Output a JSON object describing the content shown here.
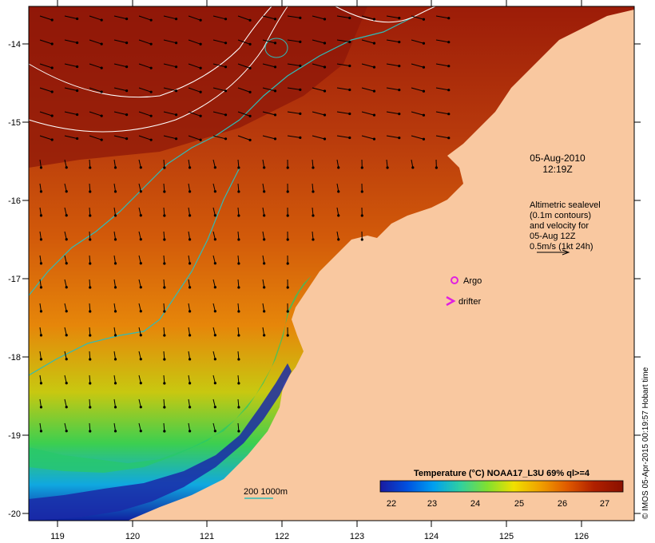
{
  "map": {
    "axes": {
      "x_ticks": [
        "119",
        "120",
        "121",
        "122",
        "123",
        "124",
        "125",
        "126"
      ],
      "y_ticks": [
        "-14",
        "-15",
        "-16",
        "-17",
        "-18",
        "-19",
        "-20"
      ]
    },
    "timestamp": {
      "date": "05-Aug-2010",
      "time": "12:19Z"
    },
    "altimetry_note": {
      "lines": [
        "Altimetric sealevel",
        "(0.1m contours)",
        "and velocity for",
        "05-Aug 12Z",
        "0.5m/s (1kt 24h)"
      ]
    },
    "markers": {
      "argo_label": "Argo",
      "drifter_label": "drifter"
    },
    "isobath_label": "200  1000m",
    "colorbar": {
      "title": "Temperature (°C) NOAA17_L3U 69% ql>=4",
      "ticks": [
        "22",
        "23",
        "24",
        "25",
        "26",
        "27"
      ],
      "colors": [
        "#1a1aa0",
        "#0050e0",
        "#00a0f0",
        "#30d0a0",
        "#80e030",
        "#f0e000",
        "#f0a000",
        "#e05a00",
        "#b02000",
        "#8a1000"
      ]
    },
    "credit": "© IMOS 05-Apr-2015 00:19:57 Hobart time",
    "colors": {
      "land": "#f9c8a0",
      "isobath": "#2fbcb8",
      "contour": "#ffffff",
      "argo": "#e020e0",
      "drifter": "#e020e0"
    }
  }
}
